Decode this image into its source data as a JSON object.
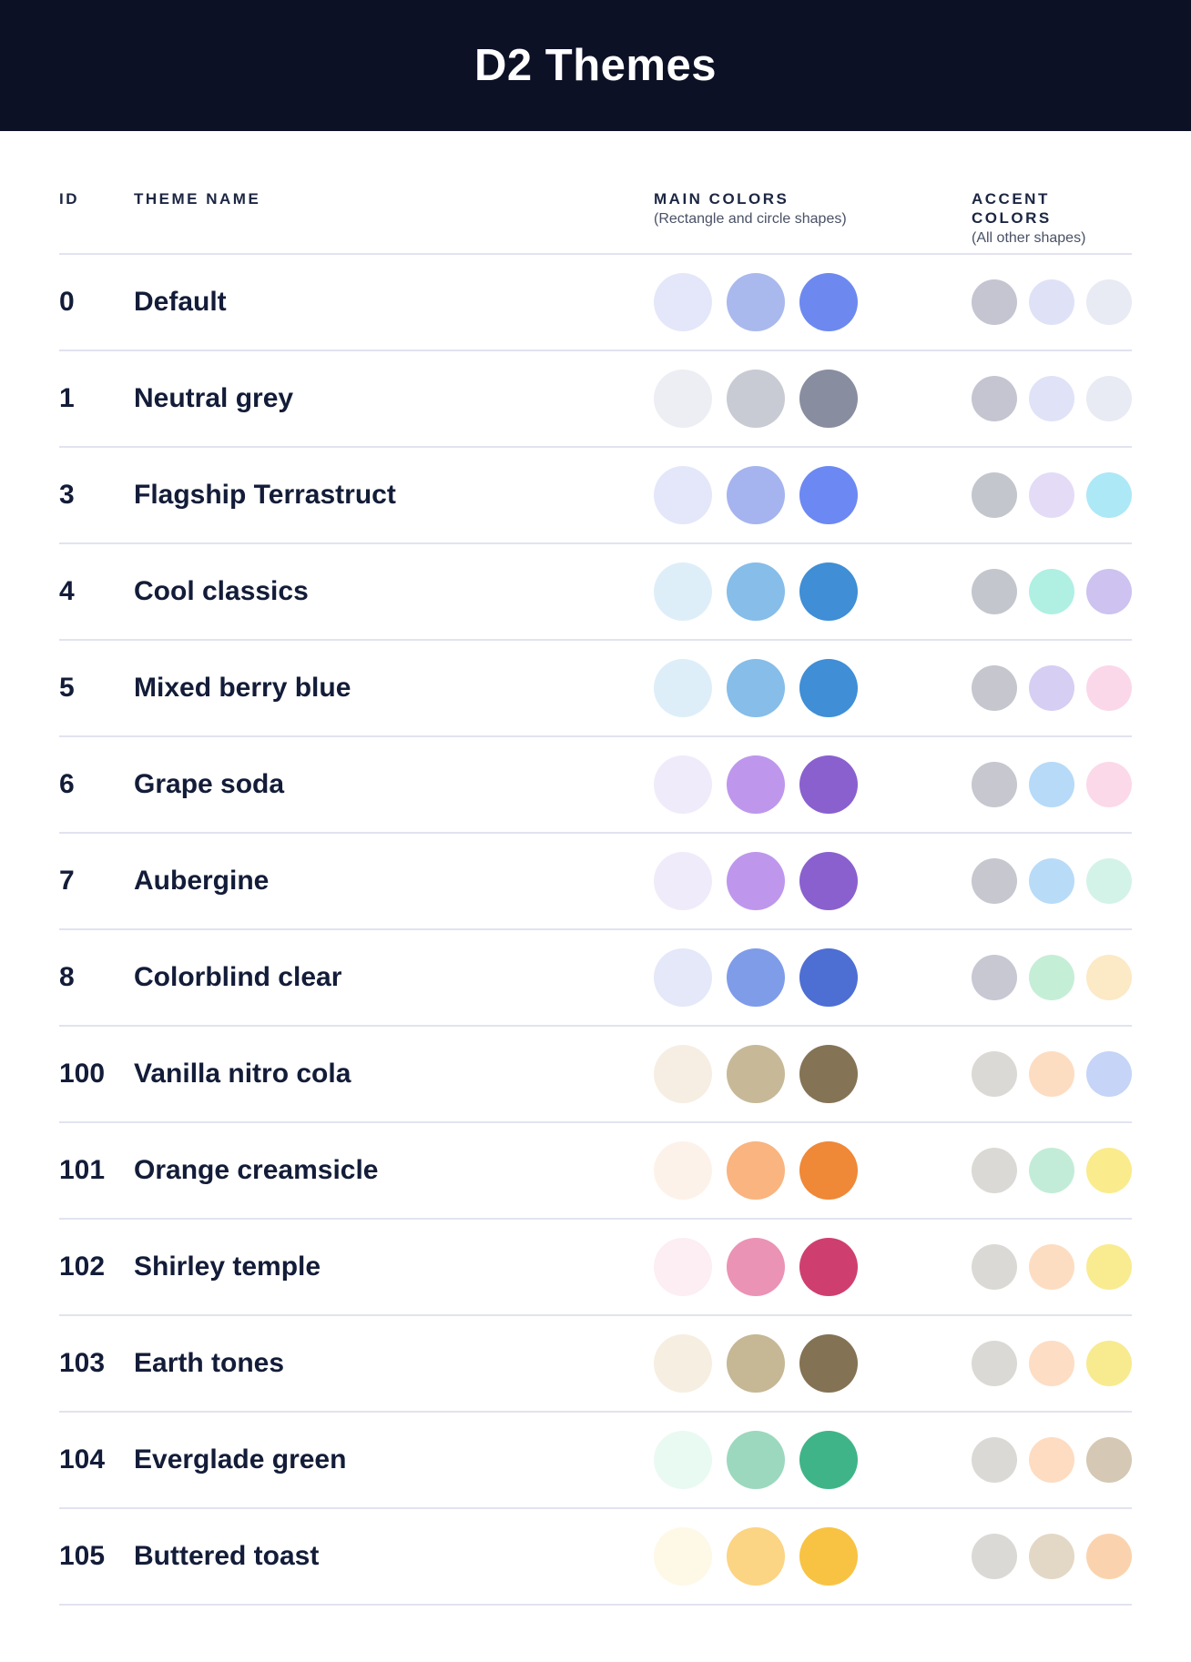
{
  "page": {
    "title": "D2 Themes"
  },
  "colors": {
    "header_bg": "#0C1126",
    "title_text": "#FFFFFF",
    "heading_text": "#1C2642",
    "subtitle_text": "#4A5166",
    "body_text": "#131C38",
    "divider": "#E1E3EF"
  },
  "table": {
    "columns": {
      "id_label": "ID",
      "name_label": "THEME NAME",
      "main_label": "MAIN COLORS",
      "main_sublabel": "(Rectangle and circle shapes)",
      "accent_label": "ACCENT COLORS",
      "accent_sublabel": "(All other shapes)"
    },
    "rows": [
      {
        "id": "0",
        "name": "Default",
        "main_colors": [
          "#E4E7F9",
          "#A9B9ED",
          "#6D89F0"
        ],
        "accent_colors": [
          "#C4C5D1",
          "#DFE2F7",
          "#E8EAF4"
        ]
      },
      {
        "id": "1",
        "name": "Neutral grey",
        "main_colors": [
          "#ECEEF3",
          "#C8CBD3",
          "#888DA0"
        ],
        "accent_colors": [
          "#C4C5D1",
          "#E0E2F7",
          "#E8EAF4"
        ]
      },
      {
        "id": "3",
        "name": "Flagship Terrastruct",
        "main_colors": [
          "#E4E7F9",
          "#A5B4EF",
          "#6C88F2"
        ],
        "accent_colors": [
          "#C4C6CE",
          "#E4DBF7",
          "#ADE8F6"
        ]
      },
      {
        "id": "4",
        "name": "Cool classics",
        "main_colors": [
          "#DEEEF9",
          "#86BDE9",
          "#3F8ED6"
        ],
        "accent_colors": [
          "#C4C6CE",
          "#AFF0E3",
          "#CDC2F0"
        ]
      },
      {
        "id": "5",
        "name": "Mixed berry blue",
        "main_colors": [
          "#DEEEF9",
          "#86BDE9",
          "#3F8ED6"
        ],
        "accent_colors": [
          "#C5C6CE",
          "#D7CEF3",
          "#FBD8E9"
        ]
      },
      {
        "id": "6",
        "name": "Grape soda",
        "main_colors": [
          "#F0EBFA",
          "#BE97ED",
          "#8A60CF"
        ],
        "accent_colors": [
          "#C6C7CF",
          "#B6DAF8",
          "#FBD9E9"
        ]
      },
      {
        "id": "7",
        "name": "Aubergine",
        "main_colors": [
          "#F0EBFA",
          "#BE97ED",
          "#8A60CF"
        ],
        "accent_colors": [
          "#C6C7CF",
          "#B8DBF8",
          "#D4F3E8"
        ]
      },
      {
        "id": "8",
        "name": "Colorblind clear",
        "main_colors": [
          "#E4E8F9",
          "#7F9CE9",
          "#4D6ED3"
        ],
        "accent_colors": [
          "#C7C8D2",
          "#C5EED6",
          "#FCE9C5"
        ]
      },
      {
        "id": "100",
        "name": "Vanilla nitro cola",
        "main_colors": [
          "#F6EEE3",
          "#C7B998",
          "#857356"
        ],
        "accent_colors": [
          "#DBD9D5",
          "#FDDDC2",
          "#C5D4F7"
        ]
      },
      {
        "id": "101",
        "name": "Orange creamsicle",
        "main_colors": [
          "#FDF2E9",
          "#F9B47F",
          "#EF8837"
        ],
        "accent_colors": [
          "#DBD9D5",
          "#C3ECD8",
          "#FAEB8D"
        ]
      },
      {
        "id": "102",
        "name": "Shirley temple",
        "main_colors": [
          "#FCEEF3",
          "#EB93B4",
          "#CE3F70"
        ],
        "accent_colors": [
          "#DBD9D5",
          "#FDDDC2",
          "#F9EB90"
        ]
      },
      {
        "id": "103",
        "name": "Earth tones",
        "main_colors": [
          "#F6EEE1",
          "#C6B795",
          "#847254"
        ],
        "accent_colors": [
          "#DBD9D5",
          "#FDDDC4",
          "#F8EA8F"
        ]
      },
      {
        "id": "104",
        "name": "Everglade green",
        "main_colors": [
          "#E9FAF2",
          "#9CD8BE",
          "#3FB489"
        ],
        "accent_colors": [
          "#DBD9D5",
          "#FDDCC2",
          "#D5C8B4"
        ]
      },
      {
        "id": "105",
        "name": "Buttered toast",
        "main_colors": [
          "#FEF8E7",
          "#FBD484",
          "#F8C343"
        ],
        "accent_colors": [
          "#DBD9D5",
          "#E3D8C6",
          "#FAD3AE"
        ]
      }
    ]
  }
}
